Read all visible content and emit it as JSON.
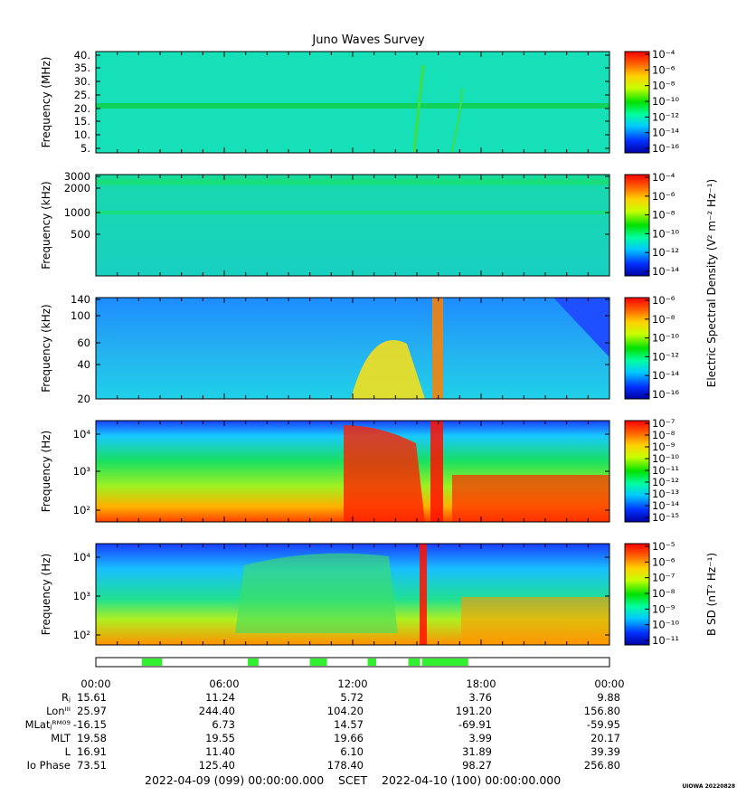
{
  "title": "Juno Waves Survey",
  "colorbar_side_labels": {
    "e_field": "Electric Spectral Density (V² m⁻² Hz⁻¹)",
    "b_field": "B SD (nT² Hz⁻¹)"
  },
  "panels": [
    {
      "ylabel": "Frequency (MHz)",
      "yticks": [
        "40.",
        "35.",
        "30.",
        "25.",
        "20.",
        "15.",
        "10.",
        "5."
      ],
      "colorbar_ticks": [
        "10⁻⁴",
        "10⁻⁶",
        "10⁻⁸",
        "10⁻¹⁰",
        "10⁻¹²",
        "10⁻¹⁴",
        "10⁻¹⁶"
      ]
    },
    {
      "ylabel": "Frequency (kHz)",
      "yticks": [
        "3000",
        "2000",
        "1000",
        "500"
      ],
      "colorbar_ticks": [
        "10⁻⁴",
        "10⁻⁶",
        "10⁻⁸",
        "10⁻¹⁰",
        "10⁻¹²",
        "10⁻¹⁴"
      ]
    },
    {
      "ylabel": "Frequency (kHz)",
      "yticks": [
        "140",
        "100",
        "60",
        "40",
        "20"
      ],
      "colorbar_ticks": [
        "10⁻⁶",
        "10⁻⁸",
        "10⁻¹⁰",
        "10⁻¹²",
        "10⁻¹⁴",
        "10⁻¹⁶"
      ]
    },
    {
      "ylabel": "Frequency (Hz)",
      "yticks": [
        "10⁴",
        "10³",
        "10²"
      ],
      "colorbar_ticks": [
        "10⁻⁷",
        "10⁻⁸",
        "10⁻⁹",
        "10⁻¹⁰",
        "10⁻¹¹",
        "10⁻¹²",
        "10⁻¹³",
        "10⁻¹⁴",
        "10⁻¹⁵"
      ]
    },
    {
      "ylabel": "Frequency (Hz)",
      "yticks": [
        "10⁴",
        "10³",
        "10²"
      ],
      "colorbar_ticks": [
        "10⁻⁵",
        "10⁻⁶",
        "10⁻⁷",
        "10⁻⁸",
        "10⁻⁹",
        "10⁻¹⁰",
        "10⁻¹¹"
      ]
    }
  ],
  "ephemeris": {
    "times": [
      "00:00",
      "06:00",
      "12:00",
      "18:00",
      "00:00"
    ],
    "rows": [
      {
        "label": "Rⱼ",
        "values": [
          "15.61",
          "11.24",
          "5.72",
          "3.76",
          "9.88"
        ]
      },
      {
        "label": "Lonᴵᴵᴵ",
        "values": [
          "25.97",
          "244.40",
          "104.20",
          "191.20",
          "156.80"
        ]
      },
      {
        "label": "MLatⱼᴿᴹ⁰⁹",
        "values": [
          "-16.15",
          "6.73",
          "14.57",
          "-69.91",
          "-59.95"
        ]
      },
      {
        "label": "MLT",
        "values": [
          "19.58",
          "19.55",
          "19.66",
          "3.99",
          "20.17"
        ]
      },
      {
        "label": "L",
        "values": [
          "16.91",
          "11.40",
          "6.10",
          "31.89",
          "39.39"
        ]
      },
      {
        "label": "Io Phase",
        "values": [
          "73.51",
          "125.40",
          "178.40",
          "98.27",
          "256.80"
        ]
      }
    ]
  },
  "footer": {
    "start": "2022-04-09 (099) 00:00:00.000",
    "scet": "SCET",
    "end": "2022-04-10 (100) 00:00:00.000"
  },
  "stamp": "UIOWA 20220828",
  "chart_data": {
    "type": "heatmap",
    "title": "Juno Waves Survey",
    "x_range": [
      "2022-04-09 00:00",
      "2022-04-10 00:00"
    ],
    "x_ticks": [
      "00:00",
      "06:00",
      "12:00",
      "18:00",
      "00:00"
    ],
    "colormap": "rainbow (blue low → red high)",
    "panels": [
      {
        "quantity": "Electric Spectral Density",
        "ylabel": "Frequency (MHz)",
        "ylim": [
          3,
          41
        ],
        "scale": "linear",
        "clim_exp": [
          -16,
          -4
        ]
      },
      {
        "quantity": "Electric Spectral Density",
        "ylabel": "Frequency (kHz)",
        "ylim": [
          150,
          3000
        ],
        "scale": "log",
        "clim_exp": [
          -14,
          -4
        ]
      },
      {
        "quantity": "Electric Spectral Density",
        "ylabel": "Frequency (kHz)",
        "ylim": [
          20,
          140
        ],
        "scale": "log",
        "clim_exp": [
          -16,
          -6
        ]
      },
      {
        "quantity": "Electric Spectral Density",
        "ylabel": "Frequency (Hz)",
        "ylim": [
          50,
          20000
        ],
        "scale": "log",
        "clim_exp": [
          -15,
          -7
        ]
      },
      {
        "quantity": "B SD",
        "ylabel": "Frequency (Hz)",
        "ylim": [
          50,
          20000
        ],
        "scale": "log",
        "clim_exp": [
          -11,
          -5
        ]
      }
    ],
    "data_coverage_hours": [
      [
        2.15,
        3.1
      ],
      [
        7.1,
        7.6
      ],
      [
        10.0,
        10.8
      ],
      [
        12.7,
        13.1
      ],
      [
        14.6,
        15.15
      ],
      [
        15.25,
        17.4
      ]
    ]
  }
}
